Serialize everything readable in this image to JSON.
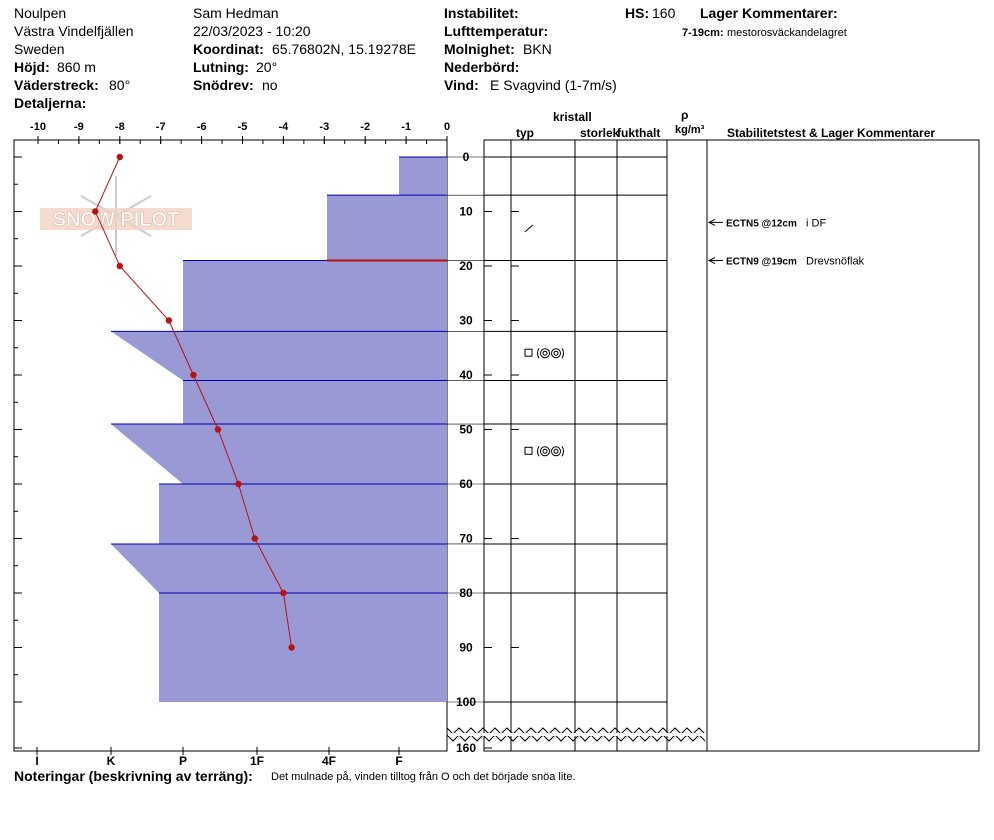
{
  "header": {
    "location_name": "Noulpen",
    "region": "Västra Vindelfjällen",
    "country": "Sweden",
    "elevation_label": "Höjd:",
    "elevation_value": "860 m",
    "aspect_label": "Väderstreck:",
    "aspect_value": "80°",
    "details_label": "Detaljerna:",
    "observer": "Sam Hedman",
    "datetime": "22/03/2023 - 10:20",
    "coordinate_label": "Koordinat:",
    "coordinate_value": "65.76802N, 15.19278E",
    "slope_label": "Lutning:",
    "slope_value": "20°",
    "snowdrift_label": "Snödrev:",
    "snowdrift_value": "no",
    "instability_label": "Instabilitet:",
    "hs_label": "HS:",
    "hs_value": "160",
    "layer_comments_label": "Lager Kommentarer:",
    "layer_comment_range": "7-19cm:",
    "layer_comment_text": "mestorosväckandelagret",
    "air_temp_label": "Lufttemperatur:",
    "cloud_label": "Molnighet:",
    "cloud_value": "BKN",
    "precip_label": "Nederbörd:",
    "wind_label": "Vind:",
    "wind_value": "E Svagvind (1-7m/s)"
  },
  "columns": {
    "crystal": "kristall",
    "type": "typ",
    "size": "storlek",
    "moisture": "fukthalt",
    "rho": "ρ",
    "density_unit": "kg/m³",
    "stability": "Stabilitetstest & Lager Kommentarer"
  },
  "notes": {
    "label": "Noteringar (beskrivning av terräng):",
    "text": "Det mulnade på, vinden tilltog från O och det började snöa lite."
  },
  "watermark": "SNOW PILOT",
  "colors": {
    "hardness_fill": "#9999d6",
    "hardness_edge": "#0000aa",
    "temp_line": "#bb1111",
    "weak_layer": "#bb1111"
  },
  "chart_data": {
    "type": "line",
    "temperature_axis": {
      "ticks": [
        "-10",
        "-9",
        "-8",
        "-7",
        "-6",
        "-5",
        "-4",
        "-3",
        "-2",
        "-1",
        "0"
      ],
      "range": [
        -10,
        0
      ],
      "unit": "°C"
    },
    "depth_axis": {
      "ticks": [
        "0",
        "10",
        "20",
        "30",
        "40",
        "50",
        "60",
        "70",
        "80",
        "90",
        "100",
        "160"
      ],
      "range": [
        0,
        160
      ],
      "unit": "cm"
    },
    "hardness_axis": {
      "ticks": [
        "I",
        "K",
        "P",
        "1F",
        "4F",
        "F"
      ]
    },
    "temperature_profile": [
      {
        "depth": 0,
        "temp": -8.0
      },
      {
        "depth": 10,
        "temp": -8.6
      },
      {
        "depth": 20,
        "temp": -8.0
      },
      {
        "depth": 30,
        "temp": -6.8
      },
      {
        "depth": 40,
        "temp": -6.2
      },
      {
        "depth": 50,
        "temp": -5.6
      },
      {
        "depth": 60,
        "temp": -5.1
      },
      {
        "depth": 70,
        "temp": -4.7
      },
      {
        "depth": 80,
        "temp": -4.0
      },
      {
        "depth": 90,
        "temp": -3.8
      }
    ],
    "hardness_layers": [
      {
        "top": 0,
        "bottom": 7,
        "hardness": "F"
      },
      {
        "top": 7,
        "bottom": 19,
        "hardness": "4F"
      },
      {
        "top": 19,
        "bottom": 32,
        "hardness": "K-P"
      },
      {
        "top": 32,
        "bottom": 41,
        "hardness_top": "K",
        "hardness_bottom": "K-P"
      },
      {
        "top": 41,
        "bottom": 49,
        "hardness": "K-P"
      },
      {
        "top": 49,
        "bottom": 60,
        "hardness_top": "K",
        "hardness_bottom": "K-P"
      },
      {
        "top": 60,
        "bottom": 71,
        "hardness": "P-"
      },
      {
        "top": 71,
        "bottom": 80,
        "hardness_top": "K",
        "hardness_bottom": "P-"
      },
      {
        "top": 80,
        "bottom": 100,
        "hardness": "P-"
      }
    ],
    "grain_symbols": [
      {
        "depth": 13,
        "symbol": "／"
      },
      {
        "depth": 36,
        "symbol": "□ ◎◎"
      },
      {
        "depth": 54,
        "symbol": "□ ◎◎"
      }
    ],
    "stability_tests": [
      {
        "depth": 12,
        "test": "ECTN5 @12cm",
        "comment": "i DF"
      },
      {
        "depth": 19,
        "test": "ECTN9 @19cm",
        "comment": "Drevsnöflak"
      }
    ]
  }
}
